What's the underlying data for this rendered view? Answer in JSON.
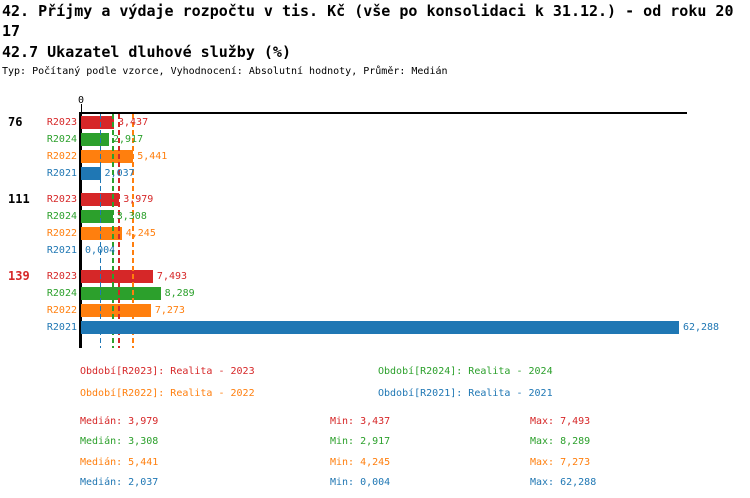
{
  "header": {
    "title_line1": "42. Příjmy a výdaje rozpočtu v tis. Kč (vše po konsolidaci k 31.12.) - od roku 20",
    "title_line2": "17",
    "section_title": "42.7 Ukazatel dluhové služby (%)",
    "subtitle": "Typ: Počítaný podle vzorce, Vyhodnocení: Absolutní hodnoty, Průměr: Medián"
  },
  "colors": {
    "R2023": "#d62728",
    "R2024": "#2ca02c",
    "R2022": "#ff7f0e",
    "R2021": "#1f77b4",
    "axis": "#000000",
    "group_label_default": "#000000",
    "group_label_highlight": "#d62728",
    "background": "#ffffff"
  },
  "chart_data": {
    "type": "bar",
    "orientation": "horizontal",
    "origin_tick_label": "0",
    "x_axis_min": 0,
    "series_order": [
      "R2023",
      "R2024",
      "R2022",
      "R2021"
    ],
    "groups": [
      {
        "label": "76",
        "highlight": false,
        "bars": [
          {
            "series": "R2023",
            "value": 3.437,
            "display": "3,437"
          },
          {
            "series": "R2024",
            "value": 2.917,
            "display": "2,917"
          },
          {
            "series": "R2022",
            "value": 5.441,
            "display": "5,441"
          },
          {
            "series": "R2021",
            "value": 2.037,
            "display": "2,037"
          }
        ]
      },
      {
        "label": "111",
        "highlight": false,
        "bars": [
          {
            "series": "R2023",
            "value": 3.979,
            "display": "3,979"
          },
          {
            "series": "R2024",
            "value": 3.308,
            "display": "3,308"
          },
          {
            "series": "R2022",
            "value": 4.245,
            "display": "4,245"
          },
          {
            "series": "R2021",
            "value": 0.004,
            "display": "0,004"
          }
        ]
      },
      {
        "label": "139",
        "highlight": true,
        "bars": [
          {
            "series": "R2023",
            "value": 7.493,
            "display": "7,493"
          },
          {
            "series": "R2024",
            "value": 8.289,
            "display": "8,289"
          },
          {
            "series": "R2022",
            "value": 7.273,
            "display": "7,273"
          },
          {
            "series": "R2021",
            "value": 62.288,
            "display": "62,288"
          }
        ]
      }
    ],
    "median_lines": [
      {
        "series": "R2023",
        "value": 3.979
      },
      {
        "series": "R2024",
        "value": 3.308
      },
      {
        "series": "R2022",
        "value": 5.441
      },
      {
        "series": "R2021",
        "value": 2.037
      }
    ]
  },
  "legend": {
    "items": [
      {
        "series": "R2023",
        "label": "Období[R2023]: Realita - 2023"
      },
      {
        "series": "R2024",
        "label": "Období[R2024]: Realita - 2024"
      },
      {
        "series": "R2022",
        "label": "Období[R2022]: Realita - 2022"
      },
      {
        "series": "R2021",
        "label": "Období[R2021]: Realita - 2021"
      }
    ]
  },
  "stats": {
    "rows": [
      {
        "series": "R2023",
        "median": "Medián: 3,979",
        "min": "Min: 3,437",
        "max": "Max: 7,493"
      },
      {
        "series": "R2024",
        "median": "Medián: 3,308",
        "min": "Min: 2,917",
        "max": "Max: 8,289"
      },
      {
        "series": "R2022",
        "median": "Medián: 5,441",
        "min": "Min: 4,245",
        "max": "Max: 7,273"
      },
      {
        "series": "R2021",
        "median": "Medián: 2,037",
        "min": "Min: 0,004",
        "max": "Max: 62,288"
      }
    ]
  }
}
